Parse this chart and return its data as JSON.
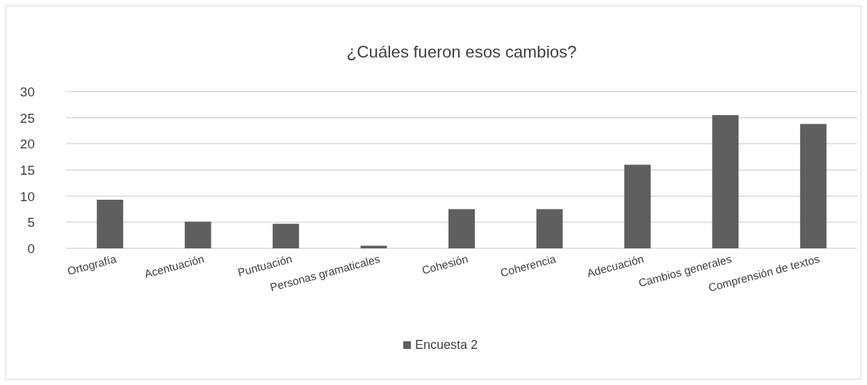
{
  "chart_data": {
    "type": "bar",
    "title": "¿Cuáles fueron esos cambios?",
    "categories": [
      "Ortografía",
      "Acentuación",
      "Puntuación",
      "Personas gramaticales",
      "Cohesión",
      "Coherencia",
      "Adecuación",
      "Cambios generales",
      "Comprensión de textos"
    ],
    "series": [
      {
        "name": "Encuesta 2",
        "color": "#5f5f5f",
        "values": [
          9.3,
          5.1,
          4.7,
          0.5,
          7.5,
          7.5,
          16,
          25.5,
          23.8
        ]
      }
    ],
    "ylim": [
      0,
      30
    ],
    "yticks": [
      0,
      5,
      10,
      15,
      20,
      25,
      30
    ],
    "grid": "y",
    "legend": "bottom"
  }
}
